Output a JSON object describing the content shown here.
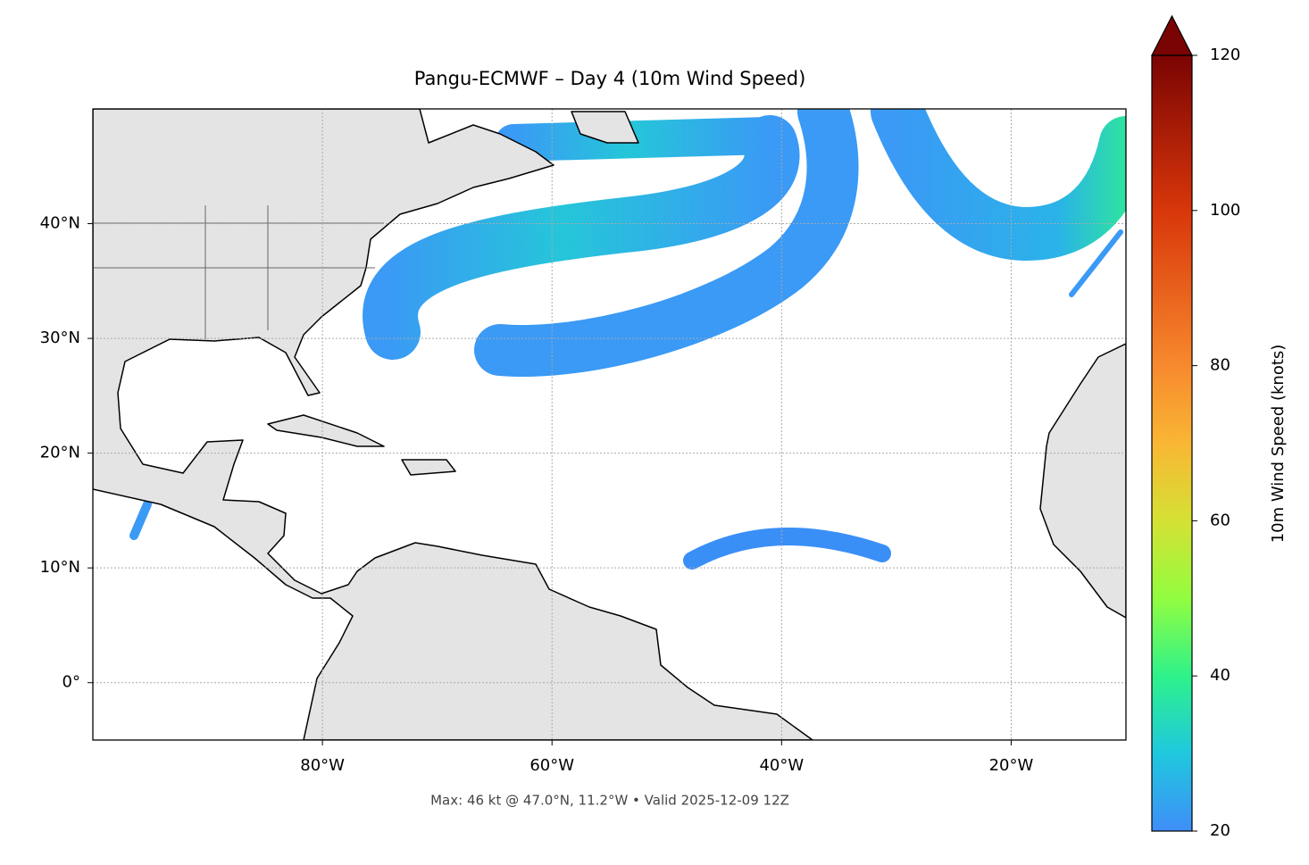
{
  "chart_data": {
    "type": "map",
    "title": "Pangu-ECMWF – Day 4 (10m Wind Speed)",
    "footer": "Max: 46 kt @ 47.0°N, 11.2°W • Valid 2025-12-09 12Z",
    "xlim": [
      -100,
      -10
    ],
    "ylim": [
      -5,
      50
    ],
    "xticks": [
      {
        "value": -80,
        "label": "80°W"
      },
      {
        "value": -60,
        "label": "60°W"
      },
      {
        "value": -40,
        "label": "40°W"
      },
      {
        "value": -20,
        "label": "20°W"
      }
    ],
    "yticks": [
      {
        "value": 0,
        "label": "0°"
      },
      {
        "value": 10,
        "label": "10°N"
      },
      {
        "value": 20,
        "label": "20°N"
      },
      {
        "value": 30,
        "label": "30°N"
      },
      {
        "value": 40,
        "label": "40°N"
      }
    ],
    "grid": true,
    "colorbar": {
      "label": "10m Wind Speed (knots)",
      "lim": [
        20,
        120
      ],
      "ticks": [
        20,
        40,
        60,
        80,
        100,
        120
      ],
      "colormap": [
        {
          "value": 20,
          "color": "#3f8ef8"
        },
        {
          "value": 30,
          "color": "#1fc8de"
        },
        {
          "value": 40,
          "color": "#2ef28a"
        },
        {
          "value": 50,
          "color": "#92fd40"
        },
        {
          "value": 60,
          "color": "#d5e134"
        },
        {
          "value": 70,
          "color": "#f9b634"
        },
        {
          "value": 80,
          "color": "#f7892e"
        },
        {
          "value": 100,
          "color": "#d9360a"
        },
        {
          "value": 120,
          "color": "#7a0403"
        }
      ]
    }
  }
}
